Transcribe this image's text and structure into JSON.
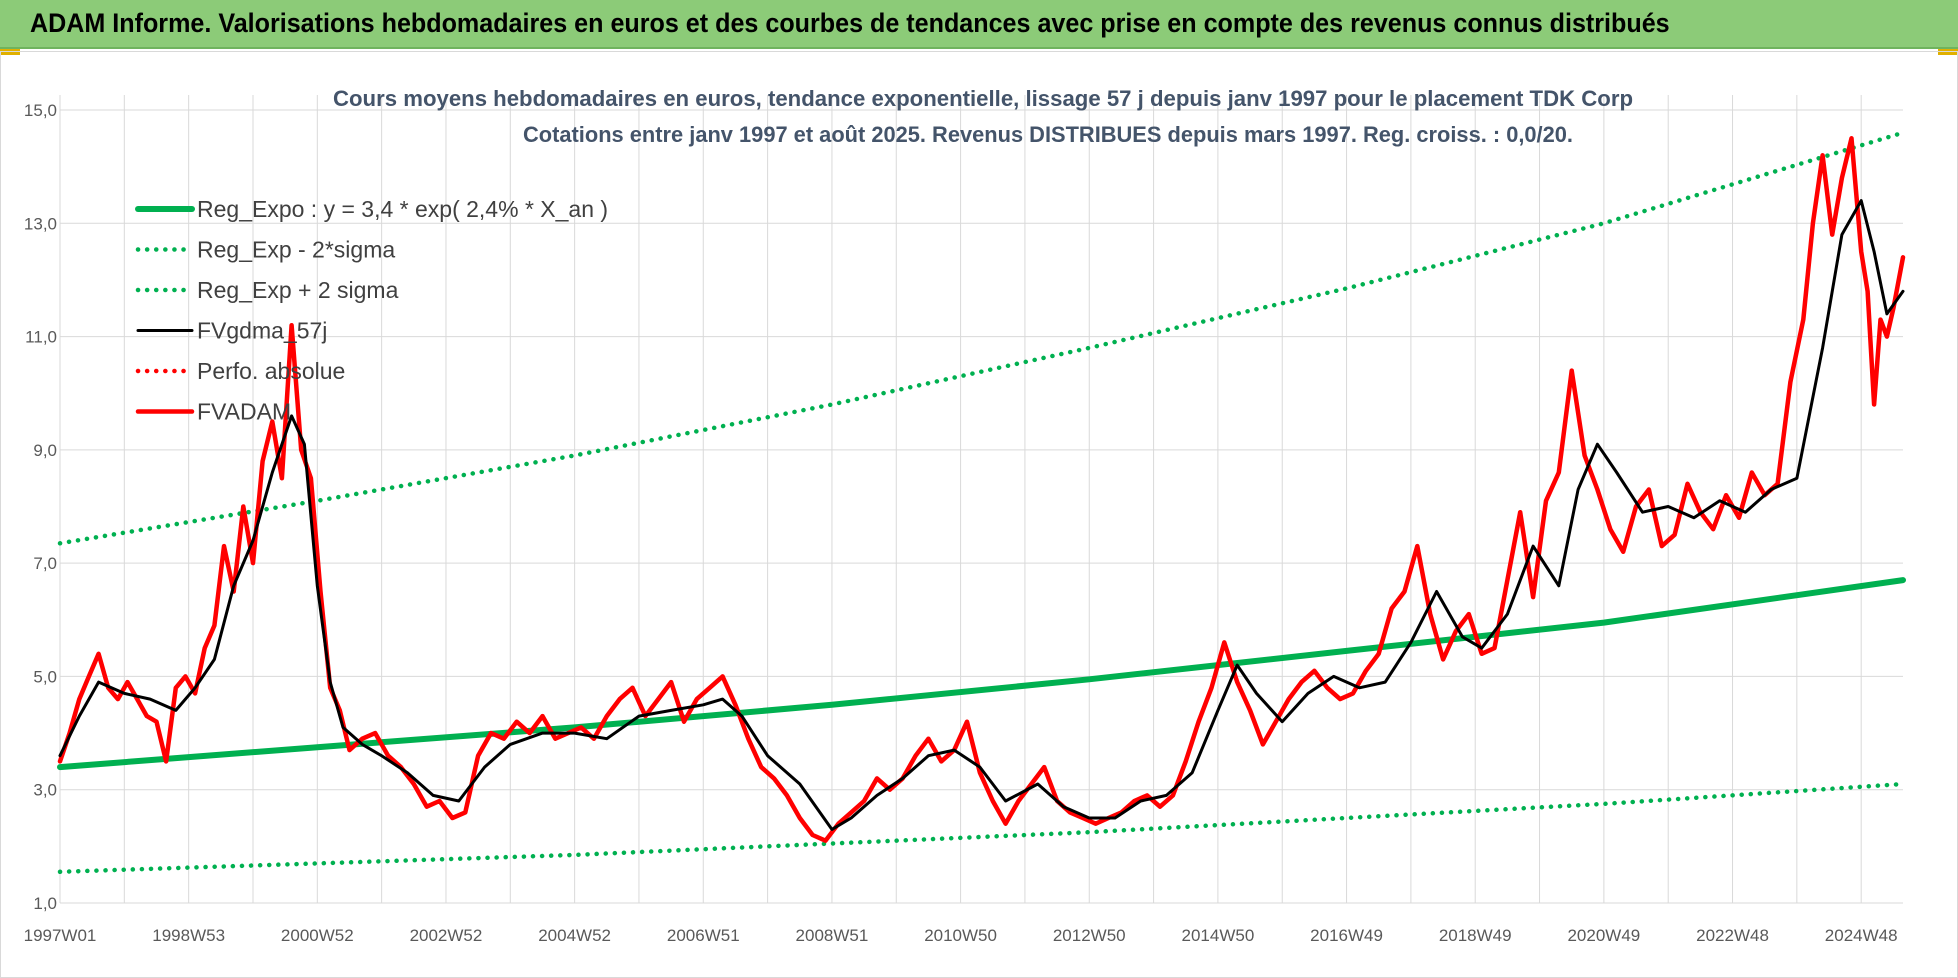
{
  "banner": {
    "title": "ADAM Informe. Valorisations hebdomadaires en euros et des courbes de tendances avec prise en compte des revenus connus distribués"
  },
  "colors": {
    "banner_bg": "#8ccb78",
    "trend": "#00b050",
    "gdma": "#000000",
    "fvadam": "#ff0000",
    "grid": "#d9d9d9",
    "axis_text": "#595959",
    "title_text": "#44546a"
  },
  "chart_data": {
    "type": "line",
    "title_line1": "Cours moyens hebdomadaires en euros, tendance exponentielle, lissage 57 j depuis janv 1997 pour le placement TDK Corp",
    "title_line2": "Cotations entre janv 1997 et août 2025.  Revenus DISTRIBUES depuis mars 1997. Reg. croiss. : 0,0/20.",
    "x_range": [
      1997.0,
      2025.65
    ],
    "ylim": [
      1.0,
      15.0
    ],
    "y_ticks": [
      "1,0",
      "3,0",
      "5,0",
      "7,0",
      "9,0",
      "11,0",
      "13,0",
      "15,0"
    ],
    "x_ticks": [
      {
        "label": "1997W01",
        "x": 1997.0
      },
      {
        "label": "1998W53",
        "x": 1999.0
      },
      {
        "label": "2000W52",
        "x": 2001.0
      },
      {
        "label": "2002W52",
        "x": 2003.0
      },
      {
        "label": "2004W52",
        "x": 2005.0
      },
      {
        "label": "2006W51",
        "x": 2007.0
      },
      {
        "label": "2008W51",
        "x": 2009.0
      },
      {
        "label": "2010W50",
        "x": 2011.0
      },
      {
        "label": "2012W50",
        "x": 2013.0
      },
      {
        "label": "2014W50",
        "x": 2015.0
      },
      {
        "label": "2016W49",
        "x": 2017.0
      },
      {
        "label": "2018W49",
        "x": 2019.0
      },
      {
        "label": "2020W49",
        "x": 2021.0
      },
      {
        "label": "2022W48",
        "x": 2023.0
      },
      {
        "label": "2024W48",
        "x": 2025.0
      }
    ],
    "grid": true,
    "legend_position": "top-left",
    "legend": [
      {
        "name": "Reg_Expo : y = 3,4 * exp( 2,4% *  X_an )",
        "style": "solid-thick",
        "color": "#00b050"
      },
      {
        "name": "Reg_Exp - 2*sigma",
        "style": "dotted",
        "color": "#00b050"
      },
      {
        "name": "Reg_Exp + 2 sigma",
        "style": "dotted",
        "color": "#00b050"
      },
      {
        "name": "FVgdma_57j",
        "style": "solid",
        "color": "#000000"
      },
      {
        "name": "Perfo. absolue",
        "style": "dotted",
        "color": "#ff0000"
      },
      {
        "name": "FVADAM",
        "style": "solid-thick",
        "color": "#ff0000"
      }
    ],
    "series": [
      {
        "name": "Reg_Expo : y = 3,4 * exp( 2,4% *  X_an )",
        "style": "solid-thick",
        "color": "#00b050",
        "x": [
          1997.0,
          2001.0,
          2005.0,
          2009.0,
          2013.0,
          2017.0,
          2021.0,
          2025.65
        ],
        "y": [
          3.4,
          3.75,
          4.1,
          4.5,
          4.95,
          5.45,
          5.95,
          6.7
        ]
      },
      {
        "name": "Reg_Exp - 2*sigma",
        "style": "dotted",
        "color": "#00b050",
        "x": [
          1997.0,
          2001.0,
          2005.0,
          2009.0,
          2013.0,
          2017.0,
          2021.0,
          2025.65
        ],
        "y": [
          1.55,
          1.7,
          1.85,
          2.05,
          2.25,
          2.5,
          2.75,
          3.1
        ]
      },
      {
        "name": "Reg_Exp + 2 sigma",
        "style": "dotted",
        "color": "#00b050",
        "x": [
          1997.0,
          2001.0,
          2005.0,
          2009.0,
          2013.0,
          2017.0,
          2021.0,
          2025.65
        ],
        "y": [
          7.35,
          8.1,
          8.9,
          9.8,
          10.8,
          11.85,
          13.0,
          14.6
        ]
      },
      {
        "name": "FVgdma_57j",
        "style": "solid",
        "color": "#000000",
        "x": [
          1997.0,
          1997.3,
          1997.6,
          1998.0,
          1998.4,
          1998.8,
          1999.1,
          1999.4,
          1999.7,
          2000.0,
          2000.3,
          2000.6,
          2000.8,
          2001.0,
          2001.2,
          2001.4,
          2001.7,
          2002.0,
          2002.4,
          2002.8,
          2003.2,
          2003.6,
          2004.0,
          2004.5,
          2005.0,
          2005.5,
          2006.0,
          2006.5,
          2007.0,
          2007.3,
          2007.6,
          2008.0,
          2008.5,
          2009.0,
          2009.3,
          2009.7,
          2010.1,
          2010.5,
          2010.9,
          2011.3,
          2011.7,
          2012.2,
          2012.6,
          2013.0,
          2013.4,
          2013.8,
          2014.2,
          2014.6,
          2015.0,
          2015.3,
          2015.6,
          2016.0,
          2016.4,
          2016.8,
          2017.2,
          2017.6,
          2018.0,
          2018.4,
          2018.8,
          2019.1,
          2019.5,
          2019.9,
          2020.3,
          2020.6,
          2020.9,
          2021.2,
          2021.6,
          2022.0,
          2022.4,
          2022.8,
          2023.2,
          2023.6,
          2024.0,
          2024.4,
          2024.7,
          2025.0,
          2025.2,
          2025.4,
          2025.65
        ],
        "y": [
          3.6,
          4.3,
          4.9,
          4.7,
          4.6,
          4.4,
          4.8,
          5.3,
          6.6,
          7.4,
          8.6,
          9.6,
          9.1,
          6.6,
          4.9,
          4.1,
          3.8,
          3.6,
          3.3,
          2.9,
          2.8,
          3.4,
          3.8,
          4.0,
          4.0,
          3.9,
          4.3,
          4.4,
          4.5,
          4.6,
          4.3,
          3.6,
          3.1,
          2.3,
          2.5,
          2.9,
          3.2,
          3.6,
          3.7,
          3.4,
          2.8,
          3.1,
          2.7,
          2.5,
          2.5,
          2.8,
          2.9,
          3.3,
          4.4,
          5.2,
          4.7,
          4.2,
          4.7,
          5.0,
          4.8,
          4.9,
          5.6,
          6.5,
          5.7,
          5.5,
          6.1,
          7.3,
          6.6,
          8.3,
          9.1,
          8.6,
          7.9,
          8.0,
          7.8,
          8.1,
          7.9,
          8.3,
          8.5,
          10.8,
          12.8,
          13.4,
          12.5,
          11.4,
          11.8
        ]
      },
      {
        "name": "FVADAM",
        "style": "solid-thick",
        "color": "#ff0000",
        "x": [
          1997.0,
          1997.15,
          1997.3,
          1997.45,
          1997.6,
          1997.75,
          1997.9,
          1998.05,
          1998.2,
          1998.35,
          1998.5,
          1998.65,
          1998.8,
          1998.95,
          1999.1,
          1999.25,
          1999.4,
          1999.55,
          1999.7,
          1999.85,
          2000.0,
          2000.15,
          2000.3,
          2000.45,
          2000.6,
          2000.75,
          2000.9,
          2001.05,
          2001.2,
          2001.35,
          2001.5,
          2001.7,
          2001.9,
          2002.1,
          2002.3,
          2002.5,
          2002.7,
          2002.9,
          2003.1,
          2003.3,
          2003.5,
          2003.7,
          2003.9,
          2004.1,
          2004.3,
          2004.5,
          2004.7,
          2004.9,
          2005.1,
          2005.3,
          2005.5,
          2005.7,
          2005.9,
          2006.1,
          2006.3,
          2006.5,
          2006.7,
          2006.9,
          2007.1,
          2007.3,
          2007.5,
          2007.7,
          2007.9,
          2008.1,
          2008.3,
          2008.5,
          2008.7,
          2008.9,
          2009.1,
          2009.3,
          2009.5,
          2009.7,
          2009.9,
          2010.1,
          2010.3,
          2010.5,
          2010.7,
          2010.9,
          2011.1,
          2011.3,
          2011.5,
          2011.7,
          2011.9,
          2012.1,
          2012.3,
          2012.5,
          2012.7,
          2012.9,
          2013.1,
          2013.3,
          2013.5,
          2013.7,
          2013.9,
          2014.1,
          2014.3,
          2014.5,
          2014.7,
          2014.9,
          2015.1,
          2015.3,
          2015.5,
          2015.7,
          2015.9,
          2016.1,
          2016.3,
          2016.5,
          2016.7,
          2016.9,
          2017.1,
          2017.3,
          2017.5,
          2017.7,
          2017.9,
          2018.1,
          2018.3,
          2018.5,
          2018.7,
          2018.9,
          2019.1,
          2019.3,
          2019.5,
          2019.7,
          2019.9,
          2020.1,
          2020.3,
          2020.5,
          2020.7,
          2020.9,
          2021.1,
          2021.3,
          2021.5,
          2021.7,
          2021.9,
          2022.1,
          2022.3,
          2022.5,
          2022.7,
          2022.9,
          2023.1,
          2023.3,
          2023.5,
          2023.7,
          2023.9,
          2024.1,
          2024.25,
          2024.4,
          2024.55,
          2024.7,
          2024.85,
          2025.0,
          2025.1,
          2025.2,
          2025.3,
          2025.4,
          2025.5,
          2025.65
        ],
        "y": [
          3.5,
          4.0,
          4.6,
          5.0,
          5.4,
          4.8,
          4.6,
          4.9,
          4.6,
          4.3,
          4.2,
          3.5,
          4.8,
          5.0,
          4.7,
          5.5,
          5.9,
          7.3,
          6.5,
          8.0,
          7.0,
          8.8,
          9.5,
          8.5,
          11.2,
          9.0,
          8.5,
          6.5,
          4.8,
          4.4,
          3.7,
          3.9,
          4.0,
          3.6,
          3.4,
          3.1,
          2.7,
          2.8,
          2.5,
          2.6,
          3.6,
          4.0,
          3.9,
          4.2,
          4.0,
          4.3,
          3.9,
          4.0,
          4.1,
          3.9,
          4.3,
          4.6,
          4.8,
          4.3,
          4.6,
          4.9,
          4.2,
          4.6,
          4.8,
          5.0,
          4.5,
          3.9,
          3.4,
          3.2,
          2.9,
          2.5,
          2.2,
          2.1,
          2.4,
          2.6,
          2.8,
          3.2,
          3.0,
          3.2,
          3.6,
          3.9,
          3.5,
          3.7,
          4.2,
          3.3,
          2.8,
          2.4,
          2.8,
          3.1,
          3.4,
          2.8,
          2.6,
          2.5,
          2.4,
          2.5,
          2.6,
          2.8,
          2.9,
          2.7,
          2.9,
          3.5,
          4.2,
          4.8,
          5.6,
          4.9,
          4.4,
          3.8,
          4.2,
          4.6,
          4.9,
          5.1,
          4.8,
          4.6,
          4.7,
          5.1,
          5.4,
          6.2,
          6.5,
          7.3,
          6.1,
          5.3,
          5.8,
          6.1,
          5.4,
          5.5,
          6.7,
          7.9,
          6.4,
          8.1,
          8.6,
          10.4,
          8.9,
          8.3,
          7.6,
          7.2,
          8.0,
          8.3,
          7.3,
          7.5,
          8.4,
          7.9,
          7.6,
          8.2,
          7.8,
          8.6,
          8.2,
          8.4,
          10.2,
          11.3,
          13.0,
          14.2,
          12.8,
          13.8,
          14.5,
          12.5,
          11.8,
          9.8,
          11.3,
          11.0,
          11.5,
          12.4
        ]
      }
    ]
  }
}
